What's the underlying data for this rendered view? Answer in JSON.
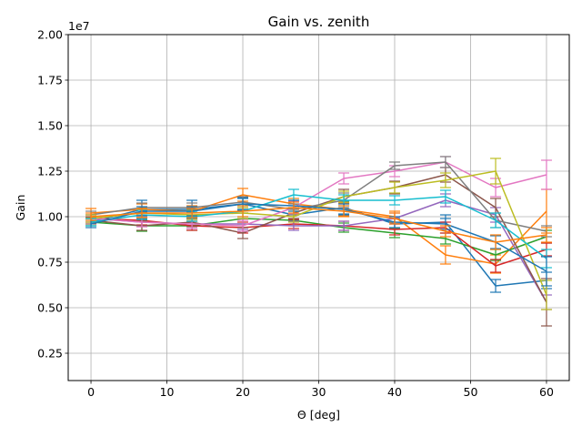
{
  "chart_data": {
    "type": "line",
    "title": "Gain vs. zenith",
    "xlabel": "Θ [deg]",
    "ylabel": "Gain",
    "offset_label": "1e7",
    "xlim": [
      -3,
      63
    ],
    "ylim": [
      1000000,
      20000000
    ],
    "xticks": [
      0,
      10,
      20,
      30,
      40,
      50,
      60
    ],
    "xtick_labels": [
      "0",
      "10",
      "20",
      "30",
      "40",
      "50",
      "60"
    ],
    "yticks": [
      2500000,
      5000000,
      7500000,
      10000000,
      12500000,
      15000000,
      17500000,
      20000000
    ],
    "ytick_labels": [
      "0.25",
      "0.50",
      "0.75",
      "1.00",
      "1.25",
      "1.50",
      "1.75",
      "2.00"
    ],
    "grid": true,
    "x": [
      0,
      6.7,
      13.3,
      20,
      26.7,
      33.3,
      40,
      46.7,
      53.3,
      60
    ],
    "series": [
      {
        "color": "#1f77b4",
        "values": [
          9700000,
          10400000,
          10400000,
          10700000,
          10100000,
          10500000,
          9600000,
          9700000,
          6200000,
          6500000
        ],
        "err": [
          200000,
          500000,
          500000,
          350000,
          300000,
          350000,
          300000,
          400000,
          350000,
          450000
        ]
      },
      {
        "color": "#ff7f0e",
        "values": [
          10200000,
          10400000,
          10300000,
          11200000,
          10700000,
          10400000,
          10000000,
          7900000,
          7400000,
          10300000
        ],
        "err": [
          250000,
          300000,
          300000,
          350000,
          300000,
          350000,
          300000,
          500000,
          500000,
          1200000
        ]
      },
      {
        "color": "#2ca02c",
        "values": [
          9700000,
          9500000,
          9500000,
          9900000,
          9800000,
          9400000,
          9100000,
          8800000,
          7900000,
          8900000
        ],
        "err": [
          200000,
          300000,
          250000,
          300000,
          300000,
          250000,
          250000,
          300000,
          300000,
          350000
        ]
      },
      {
        "color": "#d62728",
        "values": [
          9900000,
          9800000,
          9500000,
          9400000,
          9600000,
          9500000,
          9300000,
          9400000,
          7300000,
          8200000
        ],
        "err": [
          200000,
          250000,
          250000,
          300000,
          250000,
          250000,
          300000,
          300000,
          350000,
          350000
        ]
      },
      {
        "color": "#9467bd",
        "values": [
          9900000,
          9700000,
          9600000,
          9600000,
          9500000,
          9500000,
          9900000,
          10900000,
          10100000,
          5300000
        ],
        "err": [
          200000,
          250000,
          250000,
          300000,
          250000,
          250000,
          300000,
          350000,
          400000,
          400000
        ]
      },
      {
        "color": "#8c564b",
        "values": [
          9800000,
          9500000,
          9700000,
          9100000,
          10200000,
          11100000,
          11600000,
          12300000,
          10500000,
          5300000
        ],
        "err": [
          200000,
          250000,
          250000,
          300000,
          300000,
          400000,
          350000,
          400000,
          500000,
          1300000
        ]
      },
      {
        "color": "#e377c2",
        "values": [
          9900000,
          9700000,
          9600000,
          9500000,
          10500000,
          12100000,
          12500000,
          13000000,
          11600000,
          12300000
        ],
        "err": [
          200000,
          250000,
          250000,
          300000,
          350000,
          300000,
          300000,
          300000,
          500000,
          800000
        ]
      },
      {
        "color": "#7f7f7f",
        "values": [
          10100000,
          10500000,
          10500000,
          10800000,
          10400000,
          10900000,
          12800000,
          13000000,
          9800000,
          9200000
        ],
        "err": [
          200000,
          250000,
          250000,
          300000,
          300000,
          400000,
          200000,
          300000,
          400000,
          300000
        ]
      },
      {
        "color": "#bcbd22",
        "values": [
          9900000,
          10200000,
          10100000,
          10200000,
          10000000,
          11100000,
          11600000,
          12000000,
          12500000,
          5700000
        ],
        "err": [
          200000,
          250000,
          250000,
          300000,
          300000,
          300000,
          300000,
          400000,
          700000,
          800000
        ]
      },
      {
        "color": "#17becf",
        "values": [
          9700000,
          10100000,
          10000000,
          10300000,
          11200000,
          10900000,
          10900000,
          11100000,
          9800000,
          7700000
        ],
        "err": [
          200000,
          250000,
          250000,
          300000,
          300000,
          300000,
          250000,
          350000,
          400000,
          500000
        ]
      },
      {
        "color": "#1f77b4",
        "values": [
          9600000,
          10300000,
          10300000,
          10700000,
          10600000,
          10400000,
          9700000,
          9600000,
          8600000,
          7000000
        ],
        "err": [
          200000,
          250000,
          250000,
          300000,
          300000,
          300000,
          300000,
          300000,
          350000,
          800000
        ]
      },
      {
        "color": "#ff7f0e",
        "values": [
          10000000,
          10200000,
          10200000,
          10300000,
          10500000,
          10300000,
          9900000,
          9200000,
          8600000,
          9000000
        ],
        "err": [
          200000,
          250000,
          250000,
          300000,
          300000,
          300000,
          300000,
          300000,
          400000,
          400000
        ]
      }
    ]
  }
}
